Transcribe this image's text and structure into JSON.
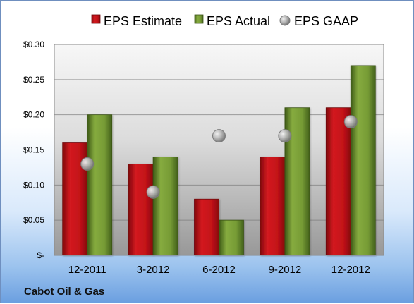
{
  "chart_data": {
    "type": "bar",
    "categories": [
      "12-2011",
      "3-2012",
      "6-2012",
      "9-2012",
      "12-2012"
    ],
    "series": [
      {
        "name": "EPS Estimate",
        "values": [
          0.16,
          0.13,
          0.08,
          0.14,
          0.21
        ],
        "color": "#b90f16"
      },
      {
        "name": "EPS Actual",
        "values": [
          0.2,
          0.14,
          0.05,
          0.21,
          0.27
        ],
        "color": "#6d8f2a"
      },
      {
        "name": "EPS GAAP",
        "values": [
          0.13,
          0.09,
          0.17,
          0.17,
          0.19
        ],
        "color": "#9f9f9f",
        "kind": "scatter"
      }
    ],
    "yticks": [
      "$-",
      "$0.05",
      "$0.10",
      "$0.15",
      "$0.20",
      "$0.25",
      "$0.30"
    ],
    "ylim": [
      0,
      0.3
    ],
    "grid": true,
    "legend": "top",
    "company": "Cabot Oil & Gas"
  }
}
